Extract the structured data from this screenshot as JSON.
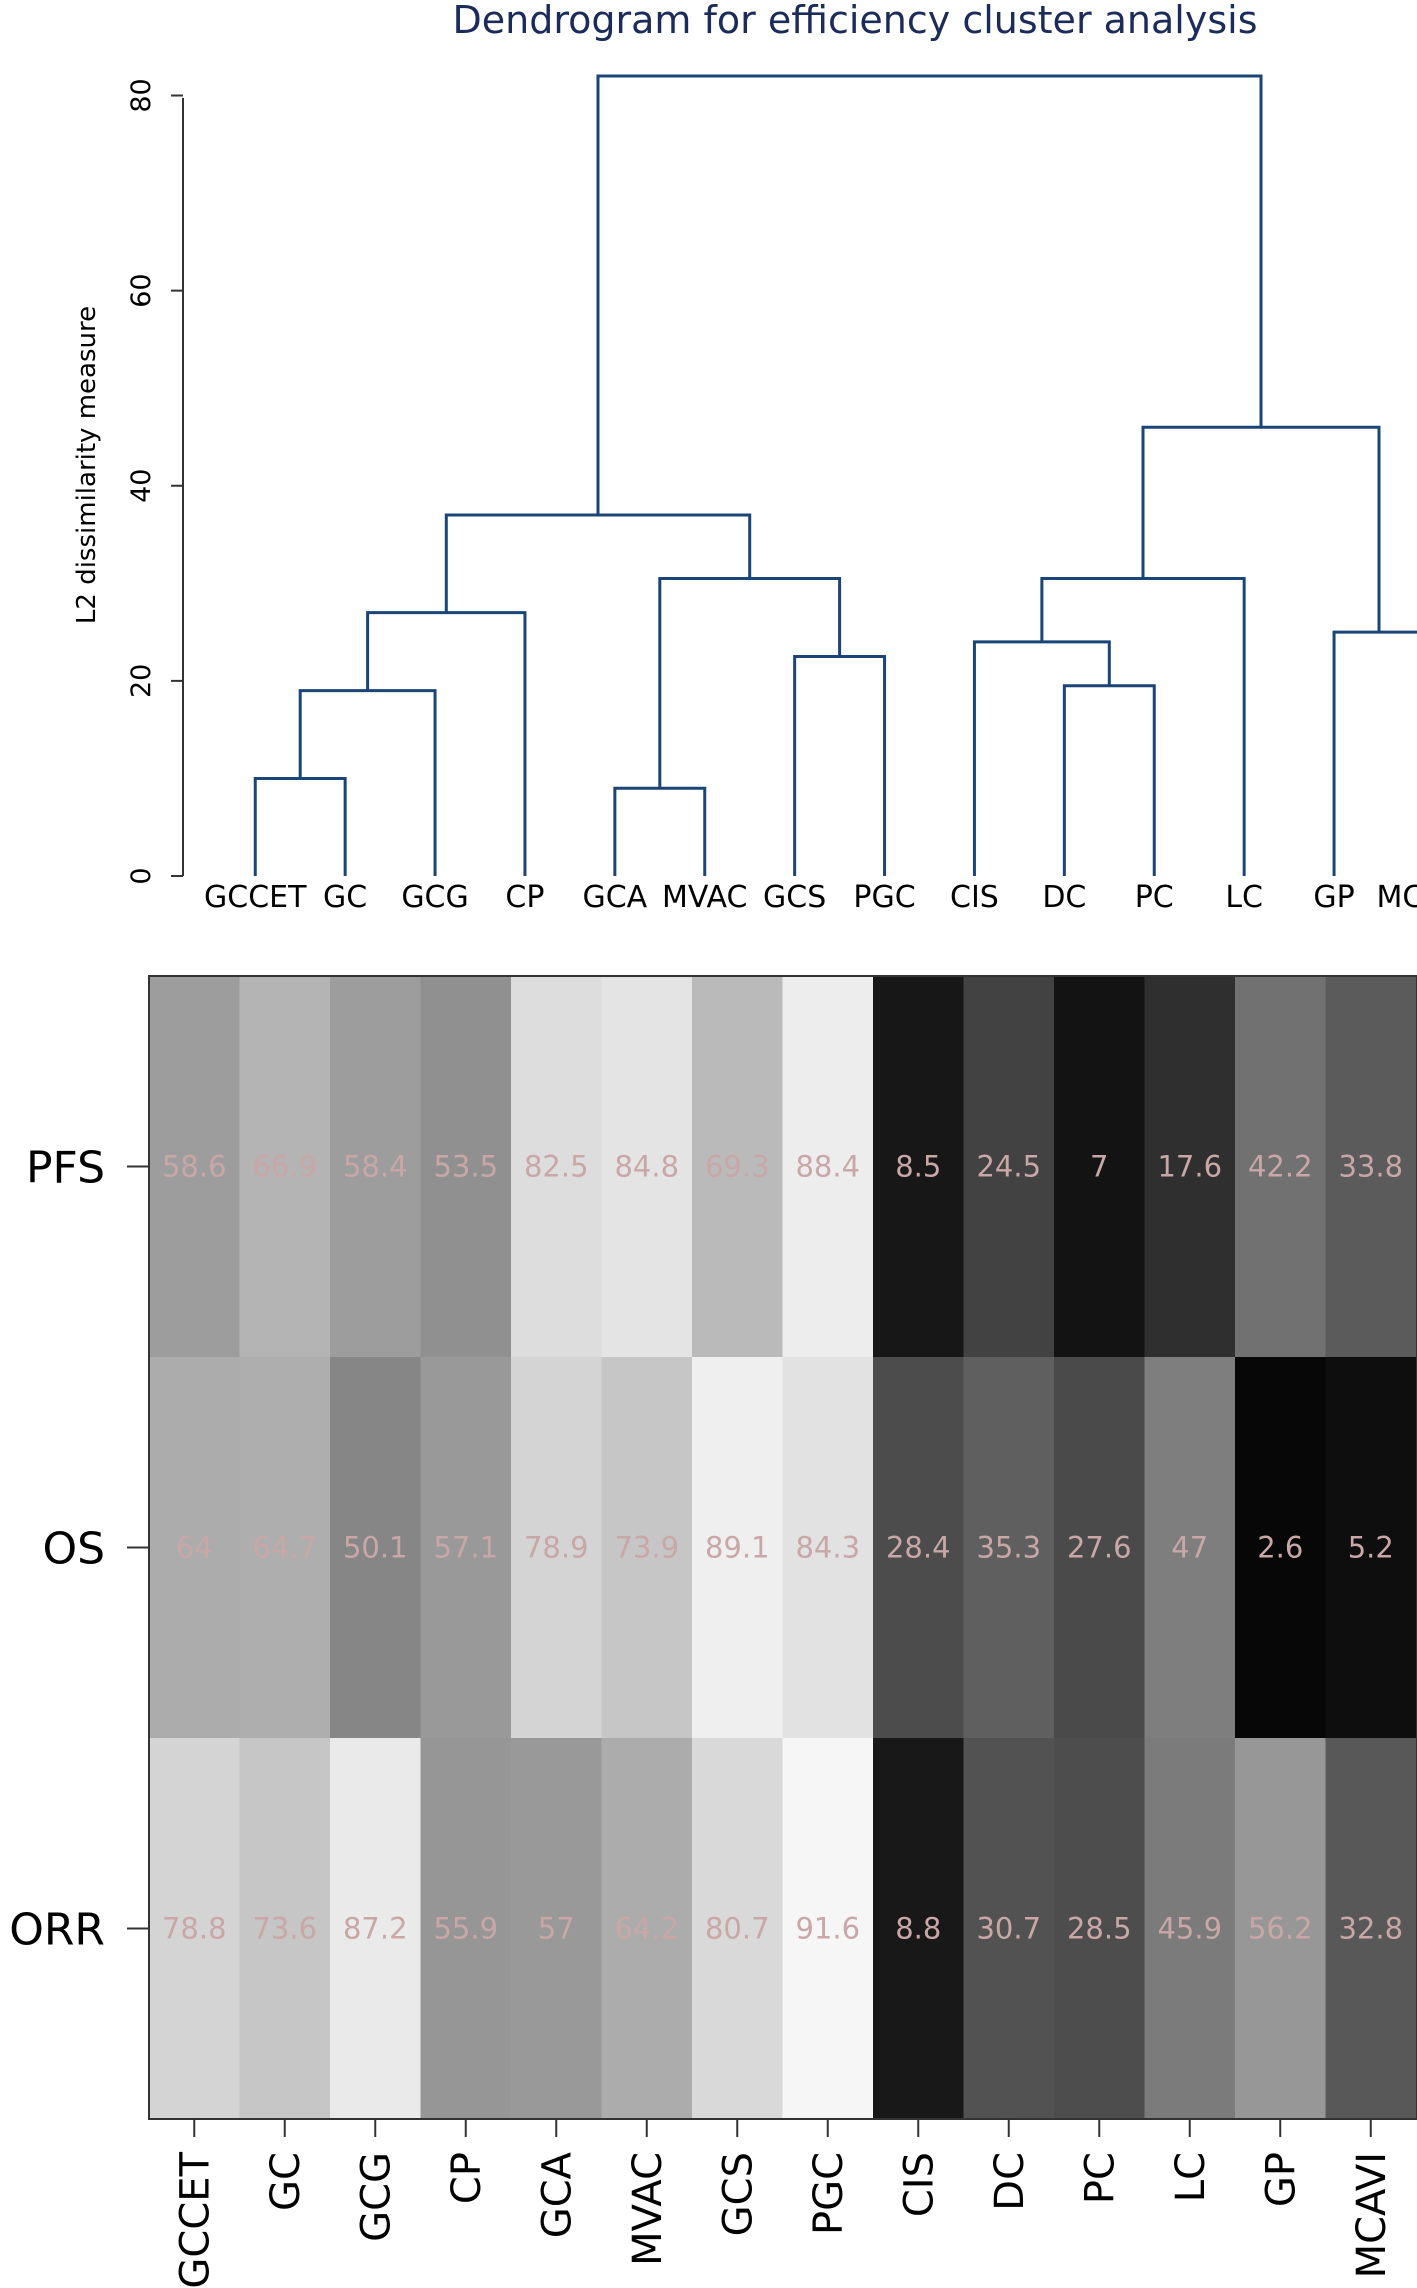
{
  "chart_data": [
    {
      "type": "dendrogram",
      "title": "Dendrogram for efficiency cluster analysis",
      "ylabel": "L2 dissimilarity measure",
      "ylim": [
        0,
        82
      ],
      "yticks": [
        0,
        20,
        40,
        60,
        80
      ],
      "leaves": [
        "GCCET",
        "GC",
        "GCG",
        "CP",
        "GCA",
        "MVAC",
        "GCS",
        "PGC",
        "CIS",
        "DC",
        "PC",
        "LC",
        "GP",
        "MCAVI"
      ],
      "merges": [
        {
          "a": "L0",
          "b": "L1",
          "height": 10,
          "id": "N1"
        },
        {
          "a": "N1",
          "b": "L2",
          "height": 19,
          "id": "N2"
        },
        {
          "a": "N2",
          "b": "L3",
          "height": 27,
          "id": "N3"
        },
        {
          "a": "L4",
          "b": "L5",
          "height": 9,
          "id": "N4"
        },
        {
          "a": "L6",
          "b": "L7",
          "height": 22.5,
          "id": "N5"
        },
        {
          "a": "N4",
          "b": "N5",
          "height": 30.5,
          "id": "N6"
        },
        {
          "a": "N3",
          "b": "N6",
          "height": 37,
          "id": "N7"
        },
        {
          "a": "L9",
          "b": "L10",
          "height": 19.5,
          "id": "N8"
        },
        {
          "a": "L8",
          "b": "N8",
          "height": 24,
          "id": "N9"
        },
        {
          "a": "N9",
          "b": "L11",
          "height": 30.5,
          "id": "N10"
        },
        {
          "a": "L12",
          "b": "L13",
          "height": 25,
          "id": "N11"
        },
        {
          "a": "N10",
          "b": "N11",
          "height": 46,
          "id": "N12"
        },
        {
          "a": "N7",
          "b": "N12",
          "height": 82,
          "id": "N13"
        }
      ]
    },
    {
      "type": "heatmap",
      "rows": [
        "PFS",
        "OS",
        "ORR"
      ],
      "columns": [
        "GCCET",
        "GC",
        "GCG",
        "CP",
        "GCA",
        "MVAC",
        "GCS",
        "PGC",
        "CIS",
        "DC",
        "PC",
        "LC",
        "GP",
        "MCAVI"
      ],
      "values": [
        [
          58.6,
          66.9,
          58.4,
          53.5,
          82.5,
          84.8,
          69.3,
          88.4,
          8.5,
          24.5,
          7,
          17.6,
          42.2,
          33.8
        ],
        [
          64,
          64.7,
          50.1,
          57.1,
          78.9,
          73.9,
          89.1,
          84.3,
          28.4,
          35.3,
          27.6,
          47,
          2.6,
          5.2
        ],
        [
          78.8,
          73.6,
          87.2,
          55.9,
          57,
          64.2,
          80.7,
          91.6,
          8.8,
          30.7,
          28.5,
          45.9,
          56.2,
          32.8
        ]
      ],
      "value_labels": [
        [
          "58.6",
          "66.9",
          "58.4",
          "53.5",
          "82.5",
          "84.8",
          "69.3",
          "88.4",
          "8.5",
          "24.5",
          "7",
          "17.6",
          "42.2",
          "33.8"
        ],
        [
          "64",
          "64.7",
          "50.1",
          "57.1",
          "78.9",
          "73.9",
          "89.1",
          "84.3",
          "28.4",
          "35.3",
          "27.6",
          "47",
          "2.6",
          "5.2"
        ],
        [
          "78.8",
          "73.6",
          "87.2",
          "55.9",
          "57",
          "64.2",
          "80.7",
          "91.6",
          "8.8",
          "30.7",
          "28.5",
          "45.9",
          "56.2",
          "32.8"
        ]
      ],
      "vrange": [
        0,
        95
      ],
      "colors": {
        "low": "#000000",
        "high": "#ffffff",
        "value_text": "#c9a7a7",
        "dendrogram": "#1b4477",
        "title": "#1b2b5a"
      }
    }
  ]
}
